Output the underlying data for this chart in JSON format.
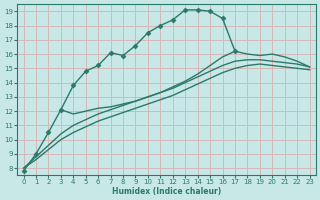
{
  "xlabel": "Humidex (Indice chaleur)",
  "ylabel": "",
  "xlim": [
    -0.5,
    23.5
  ],
  "ylim": [
    7.5,
    19.5
  ],
  "yticks": [
    8,
    9,
    10,
    11,
    12,
    13,
    14,
    15,
    16,
    17,
    18,
    19
  ],
  "xticks": [
    0,
    1,
    2,
    3,
    4,
    5,
    6,
    7,
    8,
    9,
    10,
    11,
    12,
    13,
    14,
    15,
    16,
    17,
    18,
    19,
    20,
    21,
    22,
    23
  ],
  "bg_color": "#c8e8e8",
  "grid_color": "#d4b8b8",
  "line_color": "#2a7a6a",
  "series": [
    {
      "x": [
        0,
        1,
        2,
        3,
        4,
        5,
        6,
        7,
        8,
        9,
        10,
        11,
        12,
        13,
        14,
        15,
        16,
        17
      ],
      "y": [
        7.8,
        9.0,
        10.5,
        12.1,
        13.8,
        14.8,
        15.2,
        16.1,
        15.9,
        16.6,
        17.5,
        18.0,
        18.4,
        19.1,
        19.1,
        19.0,
        18.5,
        16.2
      ],
      "marker": "D",
      "markersize": 2.5,
      "linewidth": 1.0
    },
    {
      "x": [
        3,
        4,
        5,
        6,
        7,
        8,
        9,
        10,
        11,
        12,
        13,
        14,
        15,
        16,
        17,
        18,
        19,
        20,
        21,
        22,
        23
      ],
      "y": [
        12.1,
        11.8,
        12.0,
        12.2,
        12.3,
        12.5,
        12.7,
        13.0,
        13.3,
        13.7,
        14.1,
        14.6,
        15.2,
        15.8,
        16.2,
        16.0,
        15.9,
        16.0,
        15.8,
        15.5,
        15.1
      ],
      "marker": null,
      "linewidth": 1.0
    },
    {
      "x": [
        0,
        1,
        2,
        3,
        4,
        5,
        6,
        7,
        8,
        9,
        10,
        11,
        12,
        13,
        14,
        15,
        16,
        17,
        18,
        19,
        20,
        21,
        22,
        23
      ],
      "y": [
        8.0,
        8.8,
        9.6,
        10.4,
        11.0,
        11.4,
        11.8,
        12.1,
        12.4,
        12.7,
        13.0,
        13.3,
        13.6,
        14.0,
        14.4,
        14.8,
        15.2,
        15.5,
        15.6,
        15.6,
        15.5,
        15.4,
        15.3,
        15.1
      ],
      "marker": null,
      "linewidth": 1.0
    },
    {
      "x": [
        0,
        1,
        2,
        3,
        4,
        5,
        6,
        7,
        8,
        9,
        10,
        11,
        12,
        13,
        14,
        15,
        16,
        17,
        18,
        19,
        20,
        21,
        22,
        23
      ],
      "y": [
        8.0,
        8.6,
        9.3,
        10.0,
        10.5,
        10.9,
        11.3,
        11.6,
        11.9,
        12.2,
        12.5,
        12.8,
        13.1,
        13.5,
        13.9,
        14.3,
        14.7,
        15.0,
        15.2,
        15.3,
        15.2,
        15.1,
        15.0,
        14.9
      ],
      "marker": null,
      "linewidth": 1.0
    }
  ]
}
